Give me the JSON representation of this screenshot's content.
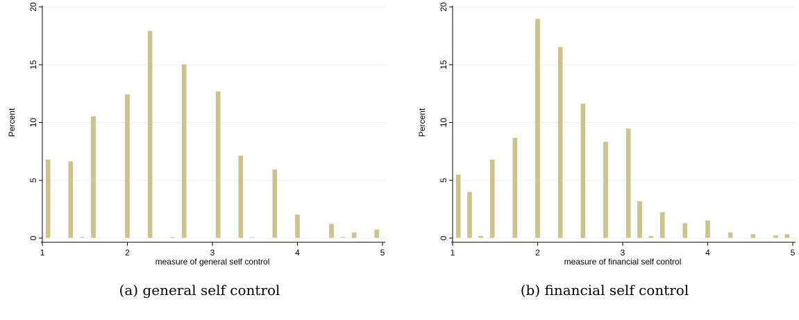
{
  "chart_data": [
    {
      "type": "bar",
      "caption": "(a) general self control",
      "xlabel": "measure of general self control",
      "ylabel": "Percent",
      "xlim": [
        1,
        5
      ],
      "ylim": [
        0,
        20
      ],
      "xticks": [
        1,
        2,
        3,
        4,
        5
      ],
      "yticks": [
        0,
        5,
        10,
        15,
        20
      ],
      "grid": true,
      "bar_color": "#cdc385",
      "bins": [
        {
          "x": 1.0667,
          "value": 6.8
        },
        {
          "x": 1.3333,
          "value": 6.65
        },
        {
          "x": 1.4667,
          "value": 0.1
        },
        {
          "x": 1.6,
          "value": 10.55
        },
        {
          "x": 2.0,
          "value": 12.45
        },
        {
          "x": 2.2667,
          "value": 17.95
        },
        {
          "x": 2.5333,
          "value": 0.1
        },
        {
          "x": 2.6667,
          "value": 15.05
        },
        {
          "x": 3.0667,
          "value": 12.7
        },
        {
          "x": 3.3333,
          "value": 7.15
        },
        {
          "x": 3.4667,
          "value": 0.1
        },
        {
          "x": 3.7333,
          "value": 5.95
        },
        {
          "x": 4.0,
          "value": 2.05
        },
        {
          "x": 4.4,
          "value": 1.25
        },
        {
          "x": 4.5333,
          "value": 0.1
        },
        {
          "x": 4.6667,
          "value": 0.5
        },
        {
          "x": 4.9333,
          "value": 0.75
        }
      ]
    },
    {
      "type": "bar",
      "caption": "(b) financial self control",
      "xlabel": "measure of financial self control",
      "ylabel": "Percent",
      "xlim": [
        1,
        5
      ],
      "ylim": [
        0,
        20
      ],
      "xticks": [
        1,
        2,
        3,
        4,
        5
      ],
      "yticks": [
        0,
        5,
        10,
        15,
        20
      ],
      "grid": true,
      "bar_color": "#cdc385",
      "bins": [
        {
          "x": 1.0667,
          "value": 5.5
        },
        {
          "x": 1.2,
          "value": 4.0
        },
        {
          "x": 1.3333,
          "value": 0.2
        },
        {
          "x": 1.4667,
          "value": 6.8
        },
        {
          "x": 1.7333,
          "value": 8.7
        },
        {
          "x": 2.0,
          "value": 19.0
        },
        {
          "x": 2.2667,
          "value": 16.55
        },
        {
          "x": 2.5333,
          "value": 11.65
        },
        {
          "x": 2.8,
          "value": 8.35
        },
        {
          "x": 3.0667,
          "value": 9.5
        },
        {
          "x": 3.2,
          "value": 3.2
        },
        {
          "x": 3.3333,
          "value": 0.2
        },
        {
          "x": 3.4667,
          "value": 2.25
        },
        {
          "x": 3.7333,
          "value": 1.3
        },
        {
          "x": 4.0,
          "value": 1.55
        },
        {
          "x": 4.2667,
          "value": 0.5
        },
        {
          "x": 4.5333,
          "value": 0.35
        },
        {
          "x": 4.8,
          "value": 0.25
        },
        {
          "x": 4.9333,
          "value": 0.35
        }
      ]
    }
  ]
}
